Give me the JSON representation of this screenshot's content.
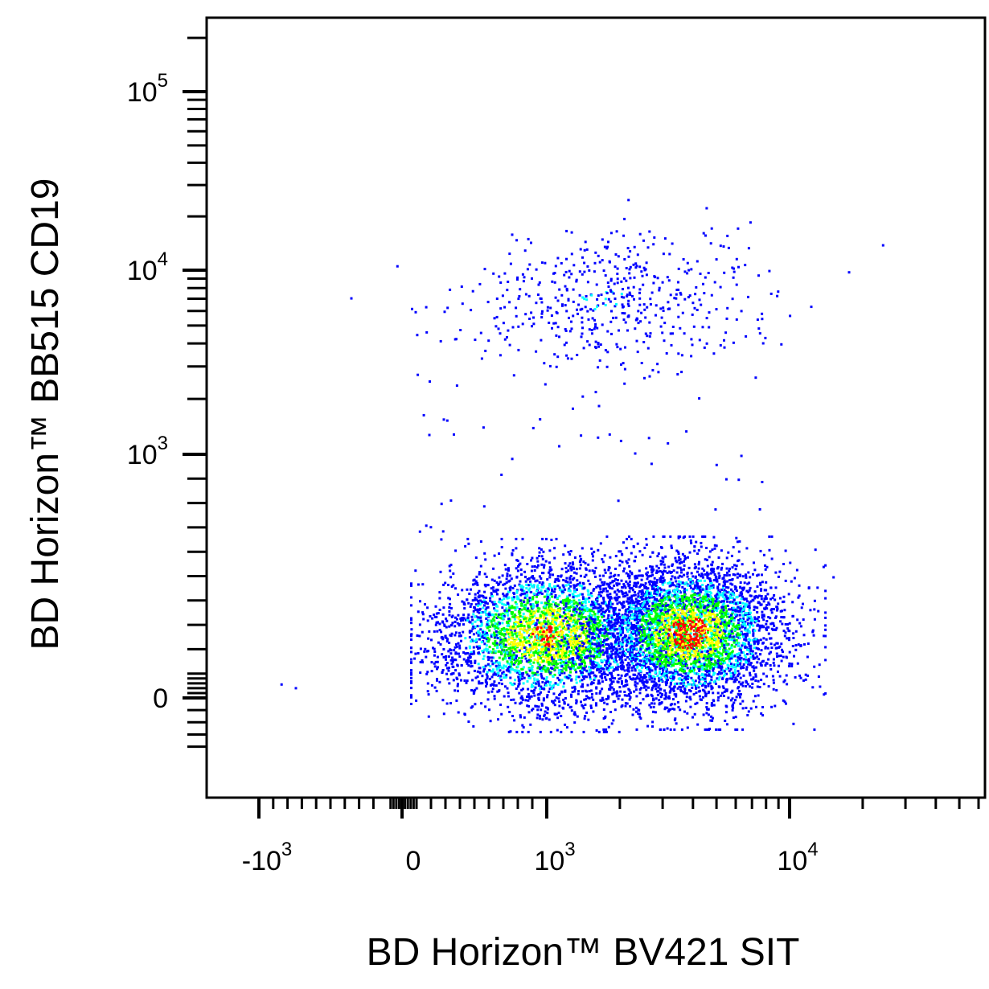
{
  "chart_data": {
    "type": "scatter",
    "subtype": "flow-cytometry-density-dot-plot",
    "title": "",
    "xlabel": "BD Horizon™ BV421 SIT",
    "ylabel": "BD Horizon™ BB515  CD19",
    "x_scale": "biexponential",
    "y_scale": "biexponential",
    "xlim": [
      -2000,
      50000
    ],
    "ylim": [
      -250,
      250000
    ],
    "x_ticks": [
      {
        "value": -1000,
        "base": "-10",
        "exp": "3"
      },
      {
        "value": 0,
        "base": "0",
        "exp": ""
      },
      {
        "value": 1000,
        "base": "10",
        "exp": "3"
      },
      {
        "value": 10000,
        "base": "10",
        "exp": "4"
      }
    ],
    "y_ticks": [
      {
        "value": 0,
        "base": "0",
        "exp": ""
      },
      {
        "value": 1000,
        "base": "10",
        "exp": "3"
      },
      {
        "value": 10000,
        "base": "10",
        "exp": "4"
      },
      {
        "value": 100000,
        "base": "10",
        "exp": "5"
      }
    ],
    "grid": false,
    "legend": "none",
    "density_colors": [
      "#0000ff",
      "#00ffff",
      "#00ff00",
      "#ffff00",
      "#ff0000"
    ],
    "populations": [
      {
        "x_center": 1000,
        "y_center": 30,
        "events": 3600,
        "density": "high"
      },
      {
        "x_center": 3800,
        "y_center": 40,
        "events": 4200,
        "density": "highest"
      },
      {
        "x_center": 1700,
        "y_center": 7000,
        "events": 520,
        "density": "low"
      }
    ],
    "scattered_events": [
      {
        "x": 24000,
        "y": 14000
      },
      {
        "x": 15000,
        "y": 500
      },
      {
        "x": -850,
        "y": 60
      },
      {
        "x": -750,
        "y": 45
      },
      {
        "x": 2000,
        "y": 1200
      },
      {
        "x": 350,
        "y": 1300
      }
    ]
  }
}
